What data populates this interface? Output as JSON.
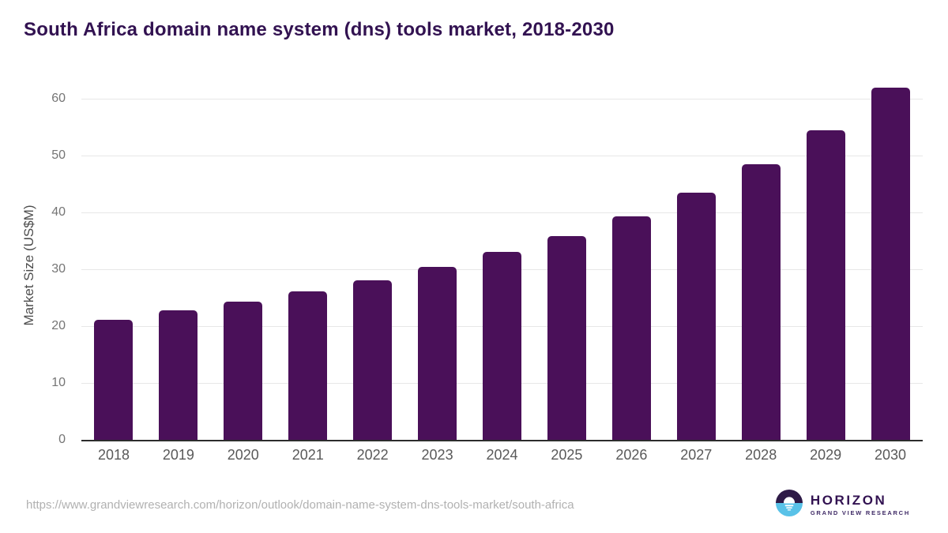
{
  "header": {
    "title": "South Africa domain name system (dns) tools market, 2018-2030"
  },
  "chart_data": {
    "type": "bar",
    "title": "South Africa domain name system (dns) tools market, 2018-2030",
    "categories": [
      "2018",
      "2019",
      "2020",
      "2021",
      "2022",
      "2023",
      "2024",
      "2025",
      "2026",
      "2027",
      "2028",
      "2029",
      "2030"
    ],
    "values": [
      21.1,
      22.8,
      24.3,
      26.1,
      28.1,
      30.4,
      33.0,
      35.8,
      39.3,
      43.5,
      48.5,
      54.4,
      61.9
    ],
    "xlabel": "",
    "ylabel": "Market Size (US$M)",
    "ylim": [
      0,
      62.5
    ],
    "yticks": [
      0,
      10,
      20,
      30,
      40,
      50,
      60
    ],
    "grid": "horizontal-light",
    "legend": "none",
    "bar_color": "#4a1059"
  },
  "footer": {
    "source_url": "https://www.grandviewresearch.com/horizon/outlook/domain-name-system-dns-tools-market/south-africa",
    "logo": {
      "brand": "HORIZON",
      "tagline": "GRAND VIEW RESEARCH"
    }
  },
  "colors": {
    "bar": "#4a1059",
    "title_text": "#321251",
    "axis_line": "#2d2d2d",
    "gridline": "#e7e7e7",
    "tick_text": "#757575",
    "x_label_text": "#595959",
    "y_title_text": "#4d4d4d",
    "url_text": "#b1b1b1",
    "logo_purple": "#2e1a47",
    "logo_blue": "#59c2e8"
  }
}
